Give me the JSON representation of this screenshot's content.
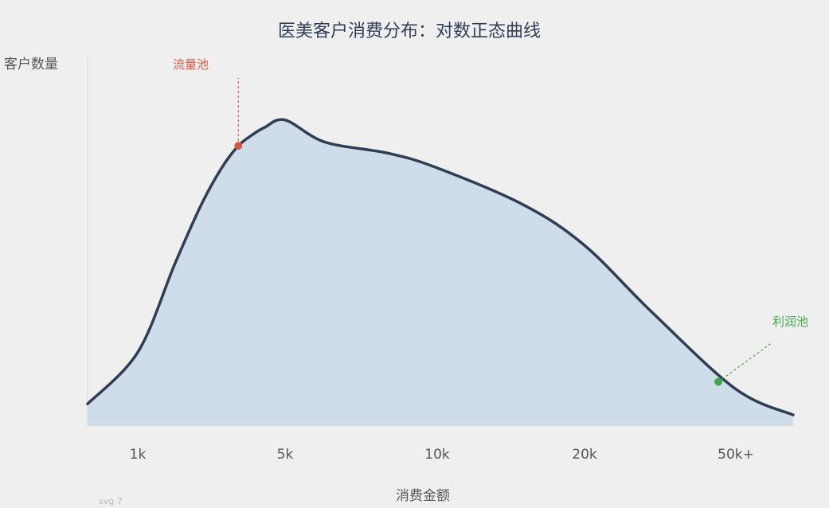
{
  "chart_data": {
    "type": "area",
    "title": "医美客户消费分布：对数正态曲线",
    "ylabel": "客户数量",
    "xlabel": "消费金额",
    "x_scale": "log",
    "categories": [
      "1k",
      "5k",
      "10k",
      "20k",
      "50k+"
    ],
    "series": [
      {
        "x": [
          800,
          1000,
          1500,
          2000,
          2500,
          3000,
          3500,
          4000,
          5000,
          6000,
          8000,
          10000,
          15000,
          20000,
          30000,
          50000,
          60000
        ],
        "y": [
          6,
          20,
          44,
          60,
          70,
          76,
          79,
          81,
          83,
          77,
          74,
          70,
          60,
          49,
          31,
          10,
          3
        ],
        "colors": {
          "line": "#2f3e55",
          "fill": "#cfdce9"
        }
      }
    ],
    "annotations": [
      {
        "text": "流量池",
        "x": 3000,
        "y": 76,
        "color": "#d35a45"
      },
      {
        "text": "利润池",
        "x": 45000,
        "y": 12,
        "color": "#43a84a"
      }
    ],
    "ylim": [
      0,
      100
    ],
    "xlim": [
      800,
      60000
    ],
    "grid": false,
    "footnote": "svg 7"
  }
}
